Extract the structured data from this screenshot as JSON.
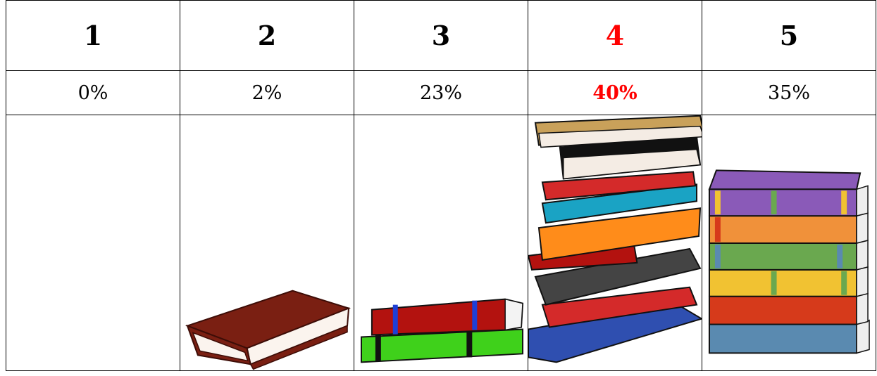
{
  "columns": [
    {
      "rating": "1",
      "percent": "0%",
      "illustration": "none"
    },
    {
      "rating": "2",
      "percent": "2%",
      "illustration": "single-book-icon"
    },
    {
      "rating": "3",
      "percent": "23%",
      "illustration": "two-books-icon"
    },
    {
      "rating": "4",
      "percent": "40%",
      "illustration": "tall-book-stack-icon"
    },
    {
      "rating": "5",
      "percent": "35%",
      "illustration": "six-book-stack-icon"
    }
  ],
  "highlight": {
    "column": "4",
    "color": "#ff0000"
  },
  "book_colors": {
    "brown": "#7a1f12",
    "red": "#b3120f",
    "green": "#3fd11b",
    "blue": "#1f3fd6",
    "purple": "#8a5ab8",
    "orange": "#f0913a",
    "olive_green": "#6aa84f",
    "yellow": "#f1c232",
    "red_orange": "#d63a1b",
    "steel_blue": "#5a8ab0",
    "tan": "#c9a15a",
    "teal": "#1aa3c4",
    "black": "#111111"
  }
}
